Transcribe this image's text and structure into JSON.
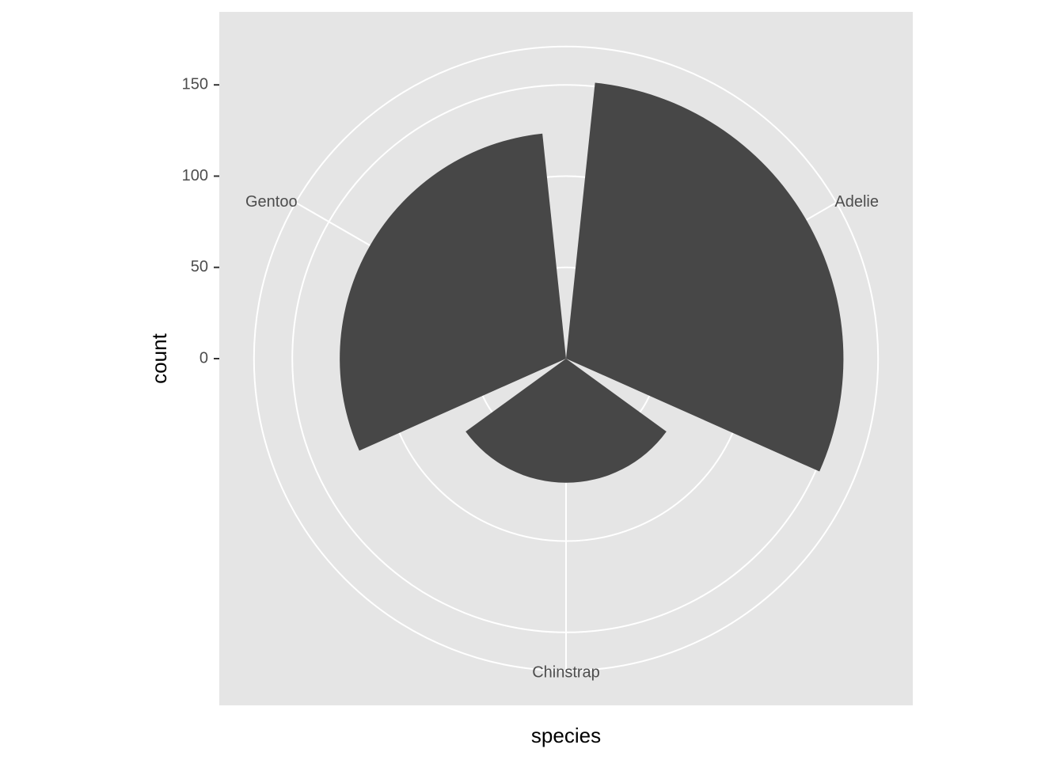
{
  "chart_data": {
    "type": "polar-bar",
    "x_label": "species",
    "y_label": "count",
    "categories": [
      "Adelie",
      "Chinstrap",
      "Gentoo"
    ],
    "values": [
      152,
      68,
      124
    ],
    "color": "#474747",
    "ylim": [
      0,
      152
    ],
    "yticks": [
      0,
      50,
      100,
      150
    ],
    "grid": true
  }
}
